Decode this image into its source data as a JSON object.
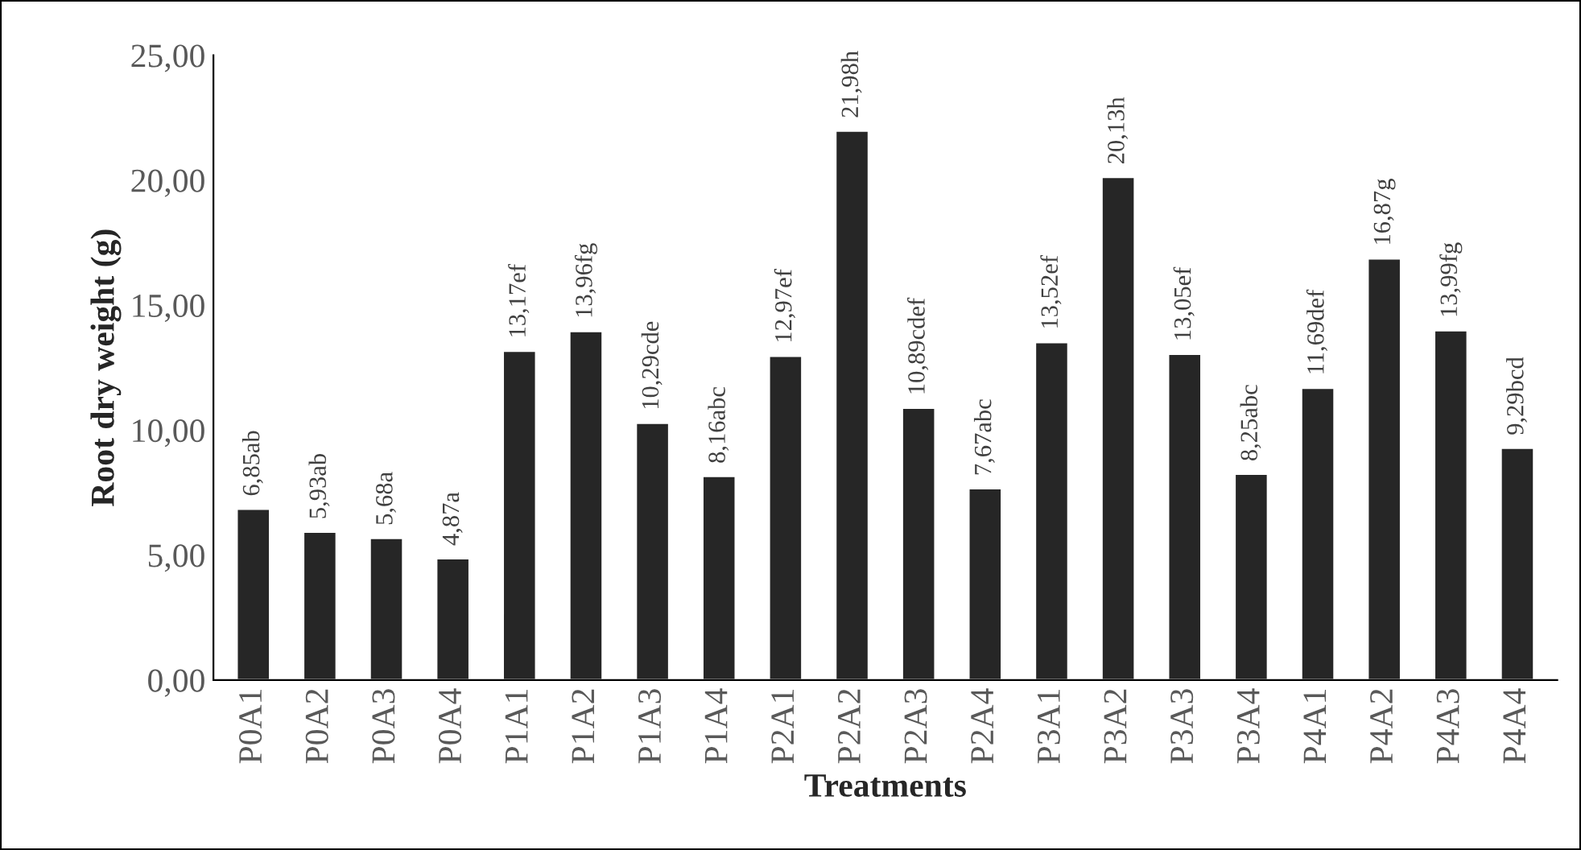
{
  "chart_data": {
    "type": "bar",
    "xlabel": "Treatments",
    "ylabel": "Root dry weight (g)",
    "categories": [
      "P0A1",
      "P0A2",
      "P0A3",
      "P0A4",
      "P1A1",
      "P1A2",
      "P1A3",
      "P1A4",
      "P2A1",
      "P2A2",
      "P2A3",
      "P2A4",
      "P3A1",
      "P3A2",
      "P3A3",
      "P3A4",
      "P4A1",
      "P4A2",
      "P4A3",
      "P4A4"
    ],
    "values": [
      6.85,
      5.93,
      5.68,
      4.87,
      13.17,
      13.96,
      10.29,
      8.16,
      12.97,
      21.98,
      10.89,
      7.67,
      13.52,
      20.13,
      13.05,
      8.25,
      11.69,
      16.87,
      13.99,
      9.29
    ],
    "value_labels": [
      "6,85ab",
      "5,93ab",
      "5,68a",
      "4,87a",
      "13,17ef",
      "13,96fg",
      "10,29cde",
      "8,16abc",
      "12,97ef",
      "21,98h",
      "10,89cdef",
      "7,67abc",
      "13,52ef",
      "20,13h",
      "13,05ef",
      "8,25abc",
      "11,69def",
      "16,87g",
      "13,99fg",
      "9,29bcd"
    ],
    "color": "#262626",
    "ylim": [
      0,
      25
    ],
    "yticks": [
      {
        "value": 0,
        "label": "0,00"
      },
      {
        "value": 5,
        "label": "5,00"
      },
      {
        "value": 10,
        "label": "10,00"
      },
      {
        "value": 15,
        "label": "15,00"
      },
      {
        "value": 20,
        "label": "20,00"
      },
      {
        "value": 25,
        "label": "25,00"
      }
    ],
    "grid": false
  }
}
